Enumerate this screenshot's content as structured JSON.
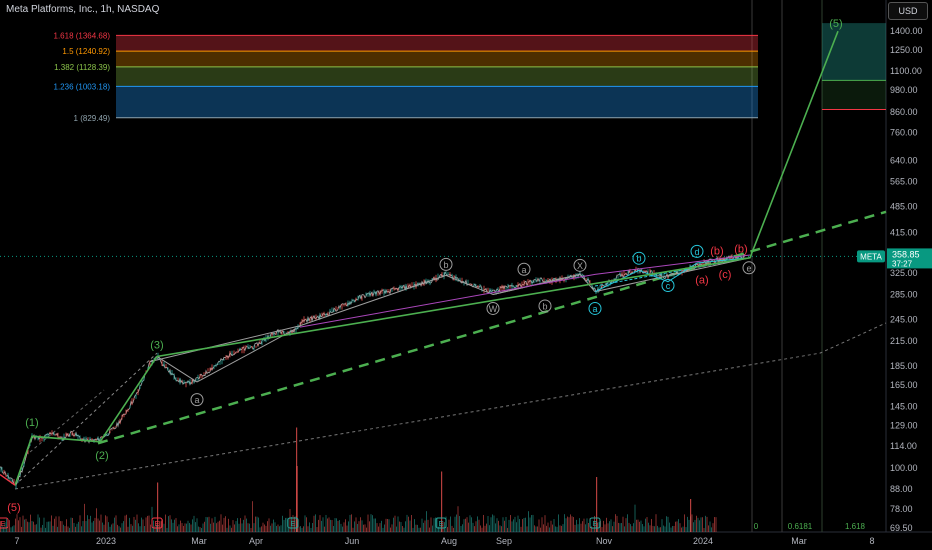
{
  "header": {
    "title": "Meta Platforms, Inc., 1h, NASDAQ",
    "currency_button": "USD"
  },
  "colors": {
    "background": "#000000",
    "green": "#4caf50",
    "red": "#f23645",
    "cyan": "#26c6da",
    "gray": "#9e9e9e",
    "price_tag": "#089981"
  },
  "chart_data": {
    "type": "line",
    "scale": "log",
    "ylim": [
      69.5,
      1480
    ],
    "y_ticks": [
      1400,
      1250,
      1100,
      980,
      860,
      760,
      640,
      565,
      485,
      415,
      365,
      325,
      285,
      245,
      215,
      185,
      165,
      145,
      129,
      114,
      100,
      88,
      78,
      69.5
    ],
    "y_tick_labels": [
      "1400.00",
      "1250.00",
      "1100.00",
      "980.00",
      "860.00",
      "760.00",
      "640.00",
      "565.00",
      "485.00",
      "415.00",
      "365.00",
      "325.00",
      "285.00",
      "245.00",
      "215.00",
      "185.00",
      "165.00",
      "145.00",
      "129.00",
      "114.00",
      "100.00",
      "88.00",
      "78.00",
      "69.50"
    ],
    "x_ticks": [
      {
        "t": 17,
        "label": "7"
      },
      {
        "t": 106,
        "label": "2023"
      },
      {
        "t": 199,
        "label": "Mar"
      },
      {
        "t": 256,
        "label": "Apr"
      },
      {
        "t": 352,
        "label": "Jun"
      },
      {
        "t": 449,
        "label": "Aug"
      },
      {
        "t": 504,
        "label": "Sep"
      },
      {
        "t": 604,
        "label": "Nov"
      },
      {
        "t": 703,
        "label": "2024"
      },
      {
        "t": 799,
        "label": "Mar"
      },
      {
        "t": 872,
        "label": "8"
      }
    ],
    "price_tag": {
      "symbol": "META",
      "value": "358.85",
      "countdown": "37:27",
      "price": 358.85
    },
    "fib_levels": [
      {
        "ratio": 1.618,
        "label": "1.618 (1364.68)",
        "price": 1364.68,
        "color": "#f23645"
      },
      {
        "ratio": 1.5,
        "label": "1.5 (1240.92)",
        "price": 1240.92,
        "color": "#ff9800"
      },
      {
        "ratio": 1.382,
        "label": "1.382 (1128.39)",
        "price": 1128.39,
        "color": "#8bc34a"
      },
      {
        "ratio": 1.236,
        "label": "1.236 (1003.18)",
        "price": 1003.18,
        "color": "#2196f3"
      },
      {
        "ratio": 1,
        "label": "1 (829.49)",
        "price": 829.49,
        "color": "#90a4ae"
      }
    ],
    "price_path": [
      [
        0,
        100
      ],
      [
        8,
        95
      ],
      [
        16,
        90
      ],
      [
        24,
        102
      ],
      [
        32,
        121
      ],
      [
        42,
        119
      ],
      [
        52,
        124
      ],
      [
        62,
        119
      ],
      [
        72,
        124
      ],
      [
        84,
        118
      ],
      [
        96,
        118
      ],
      [
        106,
        122
      ],
      [
        116,
        128
      ],
      [
        126,
        140
      ],
      [
        138,
        158
      ],
      [
        150,
        188
      ],
      [
        158,
        196
      ],
      [
        166,
        183
      ],
      [
        176,
        172
      ],
      [
        186,
        166
      ],
      [
        196,
        170
      ],
      [
        208,
        179
      ],
      [
        220,
        190
      ],
      [
        232,
        200
      ],
      [
        244,
        205
      ],
      [
        256,
        209
      ],
      [
        268,
        221
      ],
      [
        280,
        229
      ],
      [
        290,
        226
      ],
      [
        296,
        231
      ],
      [
        304,
        244
      ],
      [
        316,
        248
      ],
      [
        328,
        254
      ],
      [
        340,
        264
      ],
      [
        352,
        274
      ],
      [
        364,
        283
      ],
      [
        376,
        288
      ],
      [
        388,
        290
      ],
      [
        400,
        296
      ],
      [
        412,
        300
      ],
      [
        424,
        305
      ],
      [
        436,
        314
      ],
      [
        446,
        322
      ],
      [
        456,
        315
      ],
      [
        466,
        306
      ],
      [
        476,
        300
      ],
      [
        486,
        293
      ],
      [
        494,
        289
      ],
      [
        504,
        297
      ],
      [
        516,
        300
      ],
      [
        528,
        306
      ],
      [
        540,
        312
      ],
      [
        552,
        309
      ],
      [
        564,
        314
      ],
      [
        574,
        318
      ],
      [
        580,
        322
      ],
      [
        588,
        310
      ],
      [
        596,
        290
      ],
      [
        606,
        303
      ],
      [
        616,
        316
      ],
      [
        626,
        324
      ],
      [
        636,
        330
      ],
      [
        646,
        328
      ],
      [
        656,
        322
      ],
      [
        666,
        317
      ],
      [
        676,
        323
      ],
      [
        686,
        331
      ],
      [
        696,
        339
      ],
      [
        706,
        347
      ],
      [
        716,
        351
      ],
      [
        726,
        354
      ],
      [
        736,
        356
      ],
      [
        746,
        358.85
      ]
    ],
    "volume_spikes": [
      {
        "t": 157,
        "v": 0.45
      },
      {
        "t": 296,
        "v": 0.95
      },
      {
        "t": 296.5,
        "v": 0.6
      },
      {
        "t": 441,
        "v": 0.55
      },
      {
        "t": 596,
        "v": 0.5
      },
      {
        "t": 690,
        "v": 0.3
      }
    ],
    "wave_labels": [
      {
        "t": 14,
        "p": 79,
        "text": "(5)",
        "color": "#f23645"
      },
      {
        "t": 32,
        "p": 132,
        "text": "(1)",
        "color": "#4caf50"
      },
      {
        "t": 102,
        "p": 108,
        "text": "(2)",
        "color": "#4caf50"
      },
      {
        "t": 157,
        "p": 211,
        "text": "(3)",
        "color": "#4caf50"
      },
      {
        "t": 197,
        "p": 151,
        "text": "a",
        "color": "#9e9e9e",
        "circle": true
      },
      {
        "t": 446,
        "p": 342,
        "text": "b",
        "color": "#9e9e9e",
        "circle": true
      },
      {
        "t": 524,
        "p": 332,
        "text": "a",
        "color": "#9e9e9e",
        "circle": true
      },
      {
        "t": 580,
        "p": 340,
        "text": "X",
        "color": "#9e9e9e",
        "circle": true
      },
      {
        "t": 493,
        "p": 262,
        "text": "W",
        "color": "#9e9e9e",
        "circle": true
      },
      {
        "t": 545,
        "p": 266,
        "text": "b",
        "color": "#9e9e9e",
        "circle": true
      },
      {
        "t": 595,
        "p": 262,
        "text": "a",
        "color": "#26c6da",
        "circle": true
      },
      {
        "t": 639,
        "p": 355,
        "text": "b",
        "color": "#26c6da",
        "circle": true
      },
      {
        "t": 668,
        "p": 301,
        "text": "c",
        "color": "#26c6da",
        "circle": true
      },
      {
        "t": 697,
        "p": 370,
        "text": "d",
        "color": "#26c6da",
        "circle": true
      },
      {
        "t": 717,
        "p": 372,
        "text": "(b)",
        "color": "#f23645"
      },
      {
        "t": 741,
        "p": 376,
        "text": "(b)",
        "color": "#f23645"
      },
      {
        "t": 702,
        "p": 312,
        "text": "(a)",
        "color": "#f23645"
      },
      {
        "t": 725,
        "p": 323,
        "text": "(c)",
        "color": "#f23645"
      },
      {
        "t": 749,
        "p": 335,
        "text": "e",
        "color": "#9e9e9e",
        "circle": true
      },
      {
        "t": 836,
        "p": 1470,
        "text": "(5)",
        "color": "#4caf50"
      }
    ],
    "impulse_path": [
      [
        15,
        90
      ],
      [
        32,
        121
      ],
      [
        100,
        117
      ],
      [
        157,
        196
      ],
      [
        750,
        356
      ],
      [
        838,
        1400
      ]
    ],
    "projection_box": {
      "t0": 822,
      "t1": 886,
      "p_top": 1470,
      "p_mid": 1040,
      "p_bottom": 872
    },
    "bottom_fib_labels": [
      {
        "t": 756,
        "label": "0"
      },
      {
        "t": 800,
        "label": "0.6181"
      },
      {
        "t": 855,
        "label": "1.618"
      }
    ],
    "earnings_markers": [
      {
        "t": 3,
        "label": "E",
        "color": "#f23645"
      },
      {
        "t": 157,
        "label": "E",
        "color": "#f23645"
      },
      {
        "t": 293,
        "label": "E",
        "color": "#26a69a"
      },
      {
        "t": 441,
        "label": "E",
        "color": "#26a69a"
      },
      {
        "t": 595,
        "label": "E",
        "color": "#26a69a"
      }
    ]
  }
}
